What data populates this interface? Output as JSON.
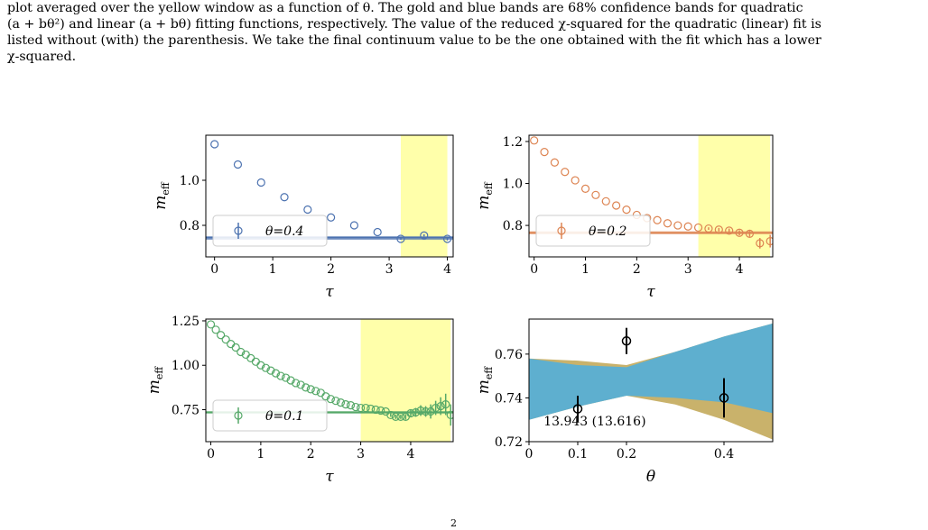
{
  "caption": [
    "plot averaged over the yellow window as a function of θ. The gold and blue bands are 68% confidence bands for quadratic",
    "(a + bθ²) and linear (a + bθ) fitting functions, respectively. The value of the reduced χ-squared for the quadratic (linear) fit is",
    "listed without (with) the parenthesis. We take the final continuum value to be the one obtained with the fit which has a lower",
    "χ-squared."
  ],
  "footer_fragment": "2",
  "colors": {
    "blue": "#4c72b0",
    "orange": "#dd8452",
    "green": "#55a868",
    "yellow": "#ffffaa",
    "gold": "#c9b26b",
    "cyan": "#5eafcf"
  },
  "chart_data": [
    {
      "type": "scatter",
      "xlabel": "τ",
      "ylabel": "m_eff",
      "xlim": [
        -0.15,
        4.1
      ],
      "ylim": [
        0.66,
        1.2
      ],
      "xticks": [
        "0",
        "1",
        "2",
        "3",
        "4"
      ],
      "yticks": [
        "0.8",
        "1.0"
      ],
      "yticks_values": [
        0.8,
        1.0
      ],
      "legend": "θ=0.4",
      "legend_position": "lower-left",
      "window": [
        3.2,
        4.0
      ],
      "fit_value": 0.745,
      "fit_band": [
        0.736,
        0.752
      ],
      "color": "blue",
      "x": [
        0,
        0.4,
        0.8,
        1.2,
        1.6,
        2.0,
        2.4,
        2.8,
        3.2,
        3.6,
        4.0
      ],
      "y": [
        1.16,
        1.07,
        0.99,
        0.925,
        0.87,
        0.835,
        0.8,
        0.77,
        0.74,
        0.755,
        0.74
      ],
      "err": [
        0,
        0,
        0,
        0,
        0,
        0,
        0,
        0,
        0.004,
        0.005,
        0.007
      ]
    },
    {
      "type": "scatter",
      "xlabel": "τ",
      "ylabel": "m_eff",
      "xlim": [
        -0.1,
        4.65
      ],
      "ylim": [
        0.65,
        1.23
      ],
      "xticks": [
        "0",
        "1",
        "2",
        "3",
        "4"
      ],
      "yticks": [
        "0.8",
        "1.0",
        "1.2"
      ],
      "yticks_values": [
        0.8,
        1.0,
        1.2
      ],
      "legend": "θ=0.2",
      "legend_position": "lower-left",
      "window": [
        3.2,
        4.6
      ],
      "fit_value": 0.765,
      "fit_band": [
        0.758,
        0.772
      ],
      "color": "orange",
      "x": [
        0,
        0.2,
        0.4,
        0.6,
        0.8,
        1.0,
        1.2,
        1.4,
        1.6,
        1.8,
        2.0,
        2.2,
        2.4,
        2.6,
        2.8,
        3.0,
        3.2,
        3.4,
        3.6,
        3.8,
        4.0,
        4.2,
        4.4,
        4.6
      ],
      "y": [
        1.205,
        1.15,
        1.1,
        1.055,
        1.015,
        0.975,
        0.945,
        0.915,
        0.895,
        0.875,
        0.85,
        0.835,
        0.825,
        0.81,
        0.8,
        0.795,
        0.79,
        0.785,
        0.78,
        0.775,
        0.765,
        0.76,
        0.715,
        0.725
      ],
      "err": [
        0,
        0,
        0,
        0,
        0,
        0,
        0,
        0,
        0,
        0,
        0,
        0,
        0,
        0,
        0,
        0,
        0,
        0.006,
        0.008,
        0.01,
        0.012,
        0.014,
        0.025,
        0.03
      ]
    },
    {
      "type": "scatter",
      "xlabel": "τ",
      "ylabel": "m_eff",
      "xlim": [
        -0.1,
        4.85
      ],
      "ylim": [
        0.57,
        1.26
      ],
      "xticks": [
        "0",
        "1",
        "2",
        "3",
        "4"
      ],
      "yticks": [
        "0.75",
        "1.00",
        "1.25"
      ],
      "yticks_values": [
        0.75,
        1.0,
        1.25
      ],
      "legend": "θ=0.1",
      "legend_position": "lower-left",
      "window": [
        3.0,
        4.8
      ],
      "fit_value": 0.735,
      "fit_band": [
        0.728,
        0.742
      ],
      "color": "green",
      "x": [
        0,
        0.1,
        0.2,
        0.3,
        0.4,
        0.5,
        0.6,
        0.7,
        0.8,
        0.9,
        1.0,
        1.1,
        1.2,
        1.3,
        1.4,
        1.5,
        1.6,
        1.7,
        1.8,
        1.9,
        2.0,
        2.1,
        2.2,
        2.3,
        2.4,
        2.5,
        2.6,
        2.7,
        2.8,
        2.9,
        3.0,
        3.1,
        3.2,
        3.3,
        3.4,
        3.5,
        3.6,
        3.7,
        3.8,
        3.9,
        4.0,
        4.1,
        4.2,
        4.3,
        4.4,
        4.5,
        4.6,
        4.7,
        4.8
      ],
      "y": [
        1.23,
        1.2,
        1.17,
        1.145,
        1.12,
        1.1,
        1.075,
        1.06,
        1.04,
        1.02,
        1.0,
        0.985,
        0.97,
        0.955,
        0.94,
        0.93,
        0.915,
        0.9,
        0.89,
        0.875,
        0.865,
        0.855,
        0.845,
        0.825,
        0.81,
        0.8,
        0.79,
        0.78,
        0.775,
        0.765,
        0.76,
        0.76,
        0.755,
        0.75,
        0.745,
        0.74,
        0.72,
        0.71,
        0.71,
        0.71,
        0.73,
        0.735,
        0.745,
        0.74,
        0.74,
        0.76,
        0.77,
        0.78,
        0.72
      ],
      "err": [
        0,
        0,
        0,
        0,
        0,
        0,
        0,
        0,
        0,
        0,
        0,
        0,
        0,
        0,
        0,
        0,
        0,
        0,
        0,
        0,
        0,
        0,
        0,
        0,
        0,
        0,
        0,
        0,
        0,
        0,
        0,
        0,
        0,
        0,
        0,
        0,
        0.01,
        0.012,
        0.012,
        0.015,
        0.02,
        0.025,
        0.03,
        0.03,
        0.04,
        0.04,
        0.05,
        0.06,
        0.06
      ]
    },
    {
      "type": "scatter",
      "xlabel": "θ",
      "ylabel": "m_eff",
      "xlim": [
        0,
        0.5
      ],
      "ylim": [
        0.72,
        0.776
      ],
      "xticks": [
        "0",
        "0.1",
        "0.2",
        "0.4"
      ],
      "xticks_values": [
        0,
        0.1,
        0.2,
        0.4
      ],
      "yticks": [
        "0.72",
        "0.74",
        "0.76"
      ],
      "yticks_values": [
        0.72,
        0.74,
        0.76
      ],
      "annotation": "13.943 (13.616)",
      "x": [
        0.1,
        0.2,
        0.4
      ],
      "y": [
        0.735,
        0.766,
        0.74
      ],
      "err": [
        0.006,
        0.006,
        0.009
      ],
      "bands": [
        {
          "fit": "quadratic",
          "color": "gold",
          "lower": [
            [
              0,
              0.73
            ],
            [
              0.1,
              0.736
            ],
            [
              0.2,
              0.741
            ],
            [
              0.3,
              0.737
            ],
            [
              0.4,
              0.73
            ],
            [
              0.5,
              0.721
            ]
          ],
          "upper": [
            [
              0,
              0.758
            ],
            [
              0.1,
              0.757
            ],
            [
              0.2,
              0.755
            ],
            [
              0.3,
              0.761
            ],
            [
              0.4,
              0.768
            ],
            [
              0.5,
              0.774
            ]
          ]
        },
        {
          "fit": "linear",
          "color": "cyan",
          "lower": [
            [
              0,
              0.73
            ],
            [
              0.1,
              0.736
            ],
            [
              0.2,
              0.741
            ],
            [
              0.3,
              0.74
            ],
            [
              0.4,
              0.738
            ],
            [
              0.5,
              0.733
            ]
          ],
          "upper": [
            [
              0,
              0.758
            ],
            [
              0.1,
              0.755
            ],
            [
              0.2,
              0.754
            ],
            [
              0.3,
              0.761
            ],
            [
              0.4,
              0.768
            ],
            [
              0.5,
              0.774
            ]
          ]
        }
      ]
    }
  ]
}
